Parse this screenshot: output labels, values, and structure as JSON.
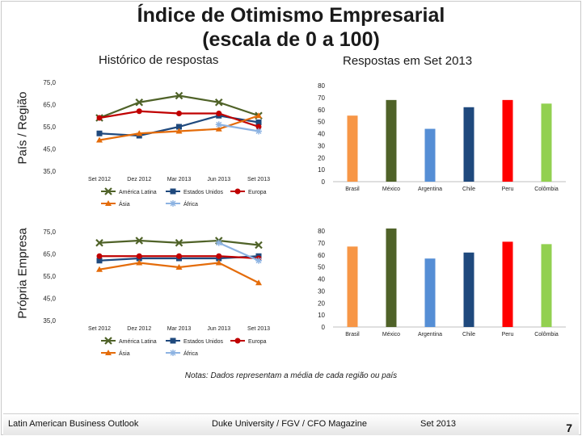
{
  "title": {
    "line1": "Índice de Otimismo Empresarial",
    "line2": "(escala de 0 a 100)"
  },
  "subtitles": {
    "history": "Histórico de respostas",
    "current": "Respostas em Set 2013"
  },
  "row_labels": {
    "country": "País / Região",
    "company": "Própria Empresa"
  },
  "note": "Notas: Dados representam a média de cada região ou país",
  "footer": {
    "left": "Latin American Business Outlook",
    "center": "Duke University / FGV / CFO Magazine",
    "date": "Set 2013",
    "page": "7"
  },
  "colors": {
    "america_latina": "#4f6228",
    "estados_unidos": "#1f497d",
    "europa": "#c00000",
    "asia": "#e46c0a",
    "africa": "#8db3e2"
  },
  "chart_data": [
    {
      "id": "country_history",
      "type": "line",
      "categories": [
        "Set 2012",
        "Dez 2012",
        "Mar 2013",
        "Jun 2013",
        "Set 2013"
      ],
      "ylim": [
        35,
        75
      ],
      "yticks": [
        "35,0",
        "45,0",
        "55,0",
        "65,0",
        "75,0"
      ],
      "legend": "bottom",
      "series": [
        {
          "name": "América Latina",
          "values": [
            59,
            66,
            69,
            66,
            60
          ],
          "marker": "x",
          "color": "#4f6228"
        },
        {
          "name": "Estados Unidos",
          "values": [
            52,
            51,
            55,
            60,
            57
          ],
          "marker": "square",
          "color": "#1f497d"
        },
        {
          "name": "Europa",
          "values": [
            59,
            62,
            61,
            61,
            55
          ],
          "marker": "circle",
          "color": "#c00000"
        },
        {
          "name": "Ásia",
          "values": [
            49,
            52,
            53,
            54,
            60
          ],
          "marker": "triangle",
          "color": "#e46c0a"
        },
        {
          "name": "África",
          "values": [
            null,
            null,
            null,
            56,
            53
          ],
          "marker": "star",
          "color": "#8db3e2"
        }
      ]
    },
    {
      "id": "country_current",
      "type": "bar",
      "categories": [
        "Brasil",
        "México",
        "Argentina",
        "Chile",
        "Peru",
        "Colômbia"
      ],
      "values": [
        55,
        68,
        44,
        62,
        68,
        65
      ],
      "colors": [
        "#f79646",
        "#4f6228",
        "#558ed5",
        "#1f497d",
        "#ff0000",
        "#92d050"
      ],
      "ylim": [
        0,
        80
      ],
      "yticks": [
        "0",
        "10",
        "20",
        "30",
        "40",
        "50",
        "60",
        "70",
        "80"
      ]
    },
    {
      "id": "company_history",
      "type": "line",
      "categories": [
        "Set 2012",
        "Dez 2012",
        "Mar 2013",
        "Jun 2013",
        "Set 2013"
      ],
      "ylim": [
        35,
        75
      ],
      "yticks": [
        "35,0",
        "45,0",
        "55,0",
        "65,0",
        "75,0"
      ],
      "legend": "bottom",
      "series": [
        {
          "name": "América Latina",
          "values": [
            70,
            71,
            70,
            71,
            69
          ],
          "marker": "x",
          "color": "#4f6228"
        },
        {
          "name": "Estados Unidos",
          "values": [
            62,
            63,
            63,
            63,
            64
          ],
          "marker": "square",
          "color": "#1f497d"
        },
        {
          "name": "Europa",
          "values": [
            64,
            64,
            64,
            64,
            63
          ],
          "marker": "circle",
          "color": "#c00000"
        },
        {
          "name": "Ásia",
          "values": [
            58,
            61,
            59,
            61,
            52
          ],
          "marker": "triangle",
          "color": "#e46c0a"
        },
        {
          "name": "África",
          "values": [
            null,
            null,
            null,
            70,
            62
          ],
          "marker": "star",
          "color": "#8db3e2"
        }
      ]
    },
    {
      "id": "company_current",
      "type": "bar",
      "categories": [
        "Brasil",
        "México",
        "Argentina",
        "Chile",
        "Peru",
        "Colômbia"
      ],
      "values": [
        67,
        82,
        57,
        62,
        71,
        69
      ],
      "colors": [
        "#f79646",
        "#4f6228",
        "#558ed5",
        "#1f497d",
        "#ff0000",
        "#92d050"
      ],
      "ylim": [
        0,
        80
      ],
      "yticks": [
        "0",
        "10",
        "20",
        "30",
        "40",
        "50",
        "60",
        "70",
        "80"
      ]
    }
  ]
}
